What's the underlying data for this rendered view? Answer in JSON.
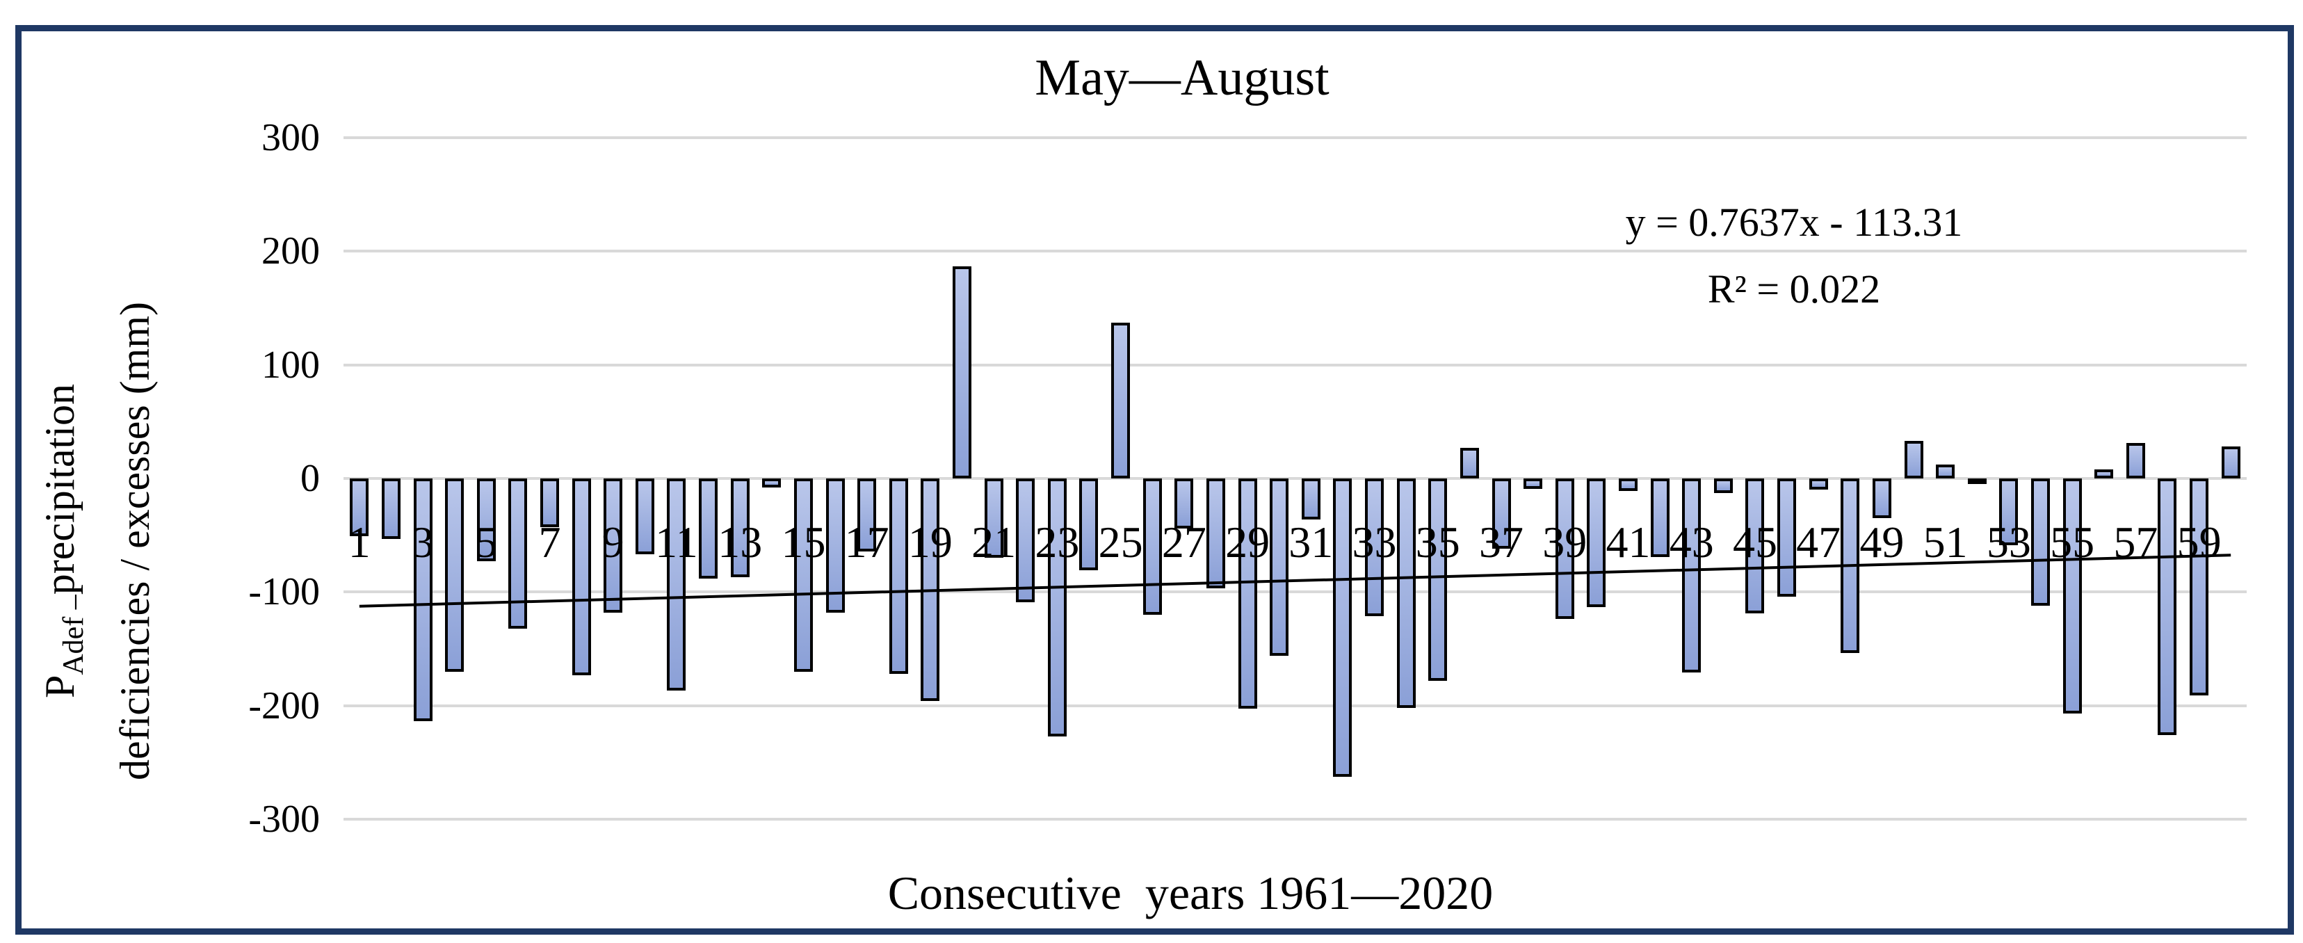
{
  "title": "May—August",
  "equation": {
    "line1": "y = 0.7637x - 113.31",
    "line2": "R² = 0.022"
  },
  "y_axis": {
    "title_p": "P",
    "title_sub": "Adef –",
    "title_rest": "precipitation",
    "title_line2": "deficiencies / excesses (mm)",
    "ticks": [
      300,
      200,
      100,
      0,
      -100,
      -200,
      -300
    ]
  },
  "x_axis": {
    "title": "Consecutive  years 1961—2020",
    "tick_labels": [
      1,
      3,
      5,
      7,
      9,
      11,
      13,
      15,
      17,
      19,
      21,
      23,
      25,
      27,
      29,
      31,
      33,
      35,
      37,
      39,
      41,
      43,
      45,
      47,
      49,
      51,
      53,
      55,
      57,
      59
    ]
  },
  "colors": {
    "frame": "#1f3864",
    "gridline": "#d9d9d9",
    "bar_fill_top": "#b9c6ea",
    "bar_fill_bottom": "#8ba0d7",
    "bar_border": "#000000",
    "trendline": "#000000"
  },
  "chart_data": {
    "type": "bar",
    "title": "May—August",
    "xlabel": "Consecutive  years 1961—2020",
    "ylabel": "P_Adef – precipitation deficiencies / excesses (mm)",
    "x_range": [
      1,
      60
    ],
    "ylim": [
      -300,
      300
    ],
    "grid": true,
    "yticks": [
      300,
      200,
      100,
      0,
      -100,
      -200,
      -300
    ],
    "xtick_labels": [
      1,
      3,
      5,
      7,
      9,
      11,
      13,
      15,
      17,
      19,
      21,
      23,
      25,
      27,
      29,
      31,
      33,
      35,
      37,
      39,
      41,
      43,
      45,
      47,
      49,
      51,
      53,
      55,
      57,
      59
    ],
    "values": [
      -51,
      -53,
      -214,
      -170,
      -73,
      -132,
      -43,
      -173,
      -118,
      -67,
      -187,
      -88,
      -87,
      -8,
      -170,
      -118,
      -64,
      -172,
      -196,
      187,
      -70,
      -109,
      -227,
      -81,
      137,
      -120,
      -44,
      -97,
      -203,
      -156,
      -36,
      -263,
      -121,
      -202,
      -178,
      27,
      -62,
      -9,
      -124,
      -113,
      -11,
      -69,
      -171,
      -13,
      -119,
      -104,
      -10,
      -154,
      -35,
      33,
      12,
      -4,
      -59,
      -112,
      -207,
      8,
      31,
      -226,
      -191,
      28
    ],
    "trendline": {
      "slope": 0.7637,
      "intercept": -113.31,
      "equation": "y = 0.7637x - 113.31",
      "r_squared": 0.022
    }
  }
}
